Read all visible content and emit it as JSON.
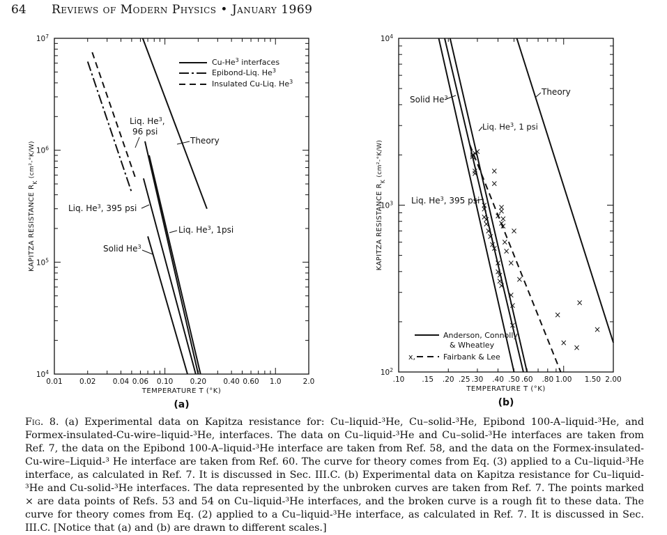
{
  "header": {
    "page_number": "64",
    "journal": "Reviews of Modern Physics • January 1969"
  },
  "chart_data": [
    {
      "panel": "(a)",
      "type": "line",
      "xscale": "log",
      "yscale": "log",
      "xlabel": "TEMPERATURE  T (°K)",
      "ylabel": "KAPITZA RESISTANCE R",
      "ylabel_sub": "K",
      "ylabel_units": " (cm²-°K/W)",
      "xlim": [
        0.01,
        2.0
      ],
      "ylim": [
        10000,
        10000000
      ],
      "x_ticks": [
        {
          "value": 0.01,
          "label": "0.01"
        },
        {
          "value": 0.02,
          "label": "0.02"
        },
        {
          "value": 0.04,
          "label": "0.04"
        },
        {
          "value": 0.06,
          "label": "0.06"
        },
        {
          "value": 0.1,
          "label": "0.10"
        },
        {
          "value": 0.2,
          "label": "0.20"
        },
        {
          "value": 0.4,
          "label": "0.40"
        },
        {
          "value": 0.6,
          "label": "0.60"
        },
        {
          "value": 1.0,
          "label": "1.0"
        },
        {
          "value": 2.0,
          "label": "2.0"
        }
      ],
      "y_ticks": [
        {
          "value": 10000,
          "base": "10",
          "exp": "4"
        },
        {
          "value": 100000,
          "base": "10",
          "exp": "5"
        },
        {
          "value": 1000000,
          "base": "10",
          "exp": "6"
        },
        {
          "value": 10000000,
          "base": "10",
          "exp": "7"
        }
      ],
      "legend": [
        {
          "style": "solid",
          "label": "Cu-He³ interfaces"
        },
        {
          "style": "longshort",
          "label": "Epibond-Liq. He³"
        },
        {
          "style": "dashed",
          "label": "Insulated Cu-Liq. He³"
        }
      ],
      "series": [
        {
          "id": "theory",
          "style": "solid",
          "x": [
            0.063,
            0.24
          ],
          "y": [
            10000000,
            300000
          ]
        },
        {
          "id": "liq-96psi",
          "style": "solid",
          "x": [
            0.066,
            0.2
          ],
          "y": [
            1200000,
            10000
          ]
        },
        {
          "id": "liq-1psi",
          "style": "solid",
          "x": [
            0.072,
            0.21
          ],
          "y": [
            900000,
            10000
          ]
        },
        {
          "id": "liq-395psi",
          "style": "solid",
          "x": [
            0.064,
            0.19
          ],
          "y": [
            560000,
            10000
          ]
        },
        {
          "id": "solid",
          "style": "solid",
          "x": [
            0.07,
            0.16
          ],
          "y": [
            170000,
            10000
          ]
        },
        {
          "id": "epibond-1",
          "style": "longshort",
          "x": [
            0.02,
            0.05
          ],
          "y": [
            6200000,
            420000
          ]
        },
        {
          "id": "epibond-2",
          "style": "dashed",
          "x": [
            0.022,
            0.055
          ],
          "y": [
            7500000,
            540000
          ]
        }
      ],
      "annotations": [
        {
          "id": "liq96-l1",
          "text": "Liq. He³,"
        },
        {
          "id": "liq96-l2",
          "text": "96 psi"
        },
        {
          "id": "theory",
          "text": "Theory"
        },
        {
          "id": "liq395",
          "text": "Liq. He³, 395 psi"
        },
        {
          "id": "liq1",
          "text": "Liq. He³, 1psi"
        },
        {
          "id": "solid",
          "text": "Solid He³"
        }
      ],
      "panel_label": "(a)"
    },
    {
      "panel": "(b)",
      "type": "line",
      "xscale": "log",
      "yscale": "log",
      "xlabel": "TEMPERATURE  T (°K)",
      "ylabel": "KAPITZA RESISTANCE R",
      "ylabel_sub": "K",
      "ylabel_units": " (cm²-°K/W)",
      "xlim": [
        0.1,
        2.0
      ],
      "ylim": [
        100,
        10000
      ],
      "x_ticks": [
        {
          "value": 0.1,
          "label": ".10"
        },
        {
          "value": 0.15,
          "label": ".15"
        },
        {
          "value": 0.2,
          "label": ".20"
        },
        {
          "value": 0.25,
          "label": ".25"
        },
        {
          "value": 0.3,
          "label": ".30"
        },
        {
          "value": 0.4,
          "label": ".40"
        },
        {
          "value": 0.5,
          "label": ".50"
        },
        {
          "value": 0.6,
          "label": ".60"
        },
        {
          "value": 0.8,
          "label": ".80"
        },
        {
          "value": 1.0,
          "label": "1.00"
        },
        {
          "value": 1.5,
          "label": "1.50"
        },
        {
          "value": 2.0,
          "label": "2.00"
        }
      ],
      "y_ticks": [
        {
          "value": 100,
          "base": "10",
          "exp": "2"
        },
        {
          "value": 1000,
          "base": "10",
          "exp": "3"
        },
        {
          "value": 10000,
          "base": "10",
          "exp": "4"
        }
      ],
      "legend": [
        {
          "style": "solid",
          "marker": "",
          "label_lines": [
            "Anderson, Connolly,",
            "& Wheatley"
          ]
        },
        {
          "style": "dashed",
          "marker": "x,",
          "label_lines": [
            "Fairbank & Lee"
          ]
        }
      ],
      "series": [
        {
          "id": "solid-he3",
          "style": "solid",
          "x": [
            0.175,
            0.5
          ],
          "y": [
            10000,
            100
          ]
        },
        {
          "id": "liq-1psi",
          "style": "solid",
          "x": [
            0.19,
            0.57
          ],
          "y": [
            10000,
            100
          ]
        },
        {
          "id": "liq-395psi",
          "style": "solid",
          "x": [
            0.205,
            0.6
          ],
          "y": [
            10000,
            100
          ]
        },
        {
          "id": "theory",
          "style": "solid",
          "x": [
            0.52,
            2.0
          ],
          "y": [
            10000,
            150
          ]
        },
        {
          "id": "fairbank-fit",
          "style": "dashed",
          "x": [
            0.27,
            0.96
          ],
          "y": [
            2300,
            100
          ]
        }
      ],
      "scatter": {
        "marker": "x",
        "x": [
          0.28,
          0.28,
          0.29,
          0.29,
          0.29,
          0.3,
          0.33,
          0.33,
          0.33,
          0.34,
          0.34,
          0.35,
          0.36,
          0.37,
          0.38,
          0.38,
          0.38,
          0.4,
          0.4,
          0.41,
          0.41,
          0.42,
          0.42,
          0.42,
          0.43,
          0.43,
          0.44,
          0.45,
          0.48,
          0.48,
          0.49,
          0.49,
          0.5,
          0.54,
          0.92,
          1.0,
          1.2,
          1.25,
          1.6,
          0.4,
          0.42
        ],
        "y": [
          2000,
          1950,
          2050,
          1600,
          1550,
          2100,
          1000,
          950,
          850,
          820,
          770,
          700,
          650,
          580,
          550,
          1600,
          1350,
          450,
          400,
          380,
          350,
          330,
          920,
          780,
          750,
          830,
          600,
          530,
          450,
          290,
          250,
          190,
          700,
          360,
          220,
          150,
          140,
          260,
          180,
          860,
          970
        ]
      },
      "annotations": [
        {
          "id": "solid",
          "text": "Solid He³"
        },
        {
          "id": "liq1",
          "text": "Liq. He³, 1 psi"
        },
        {
          "id": "theory",
          "text": "Theory"
        },
        {
          "id": "liq395",
          "text": "Liq. He³, 395 psi"
        }
      ],
      "panel_label": "(b)"
    }
  ],
  "caption": {
    "lead": "Fig. 8.",
    "text": " (a) Experimental data on Kapitza resistance for: Cu–liquid-³He, Cu–solid-³He, Epibond 100-A–liquid-³He, and Formex-insulated-Cu-wire–liquid-³He, interfaces. The data on Cu–liquid-³He and Cu–solid-³He interfaces are taken from Ref. 7, the data on the Epibond 100-A–liquid-³He interface are taken from Ref. 58, and the data on the Formex-insulated-Cu-wire–Liquid-³ He interface are taken from Ref. 60. The curve for theory comes from Eq. (3) applied to a Cu–liquid-³He interface, as calculated in Ref. 7. It is discussed in Sec. III.C.  (b) Experimental data on Kapitza resistance for Cu–liquid-³He and Cu-solid-³He interfaces. The data represented by the unbroken curves are taken from Ref. 7. The points marked × are data points of Refs. 53 and 54 on Cu–liquid-³He interfaces, and the broken curve is a rough fit to these data. The curve for theory comes from Eq. (2) applied to a Cu–liquid-³He interface, as calculated in Ref. 7. It is discussed in Sec. III.C. [Notice that (a) and (b) are drawn to different scales.]"
  }
}
